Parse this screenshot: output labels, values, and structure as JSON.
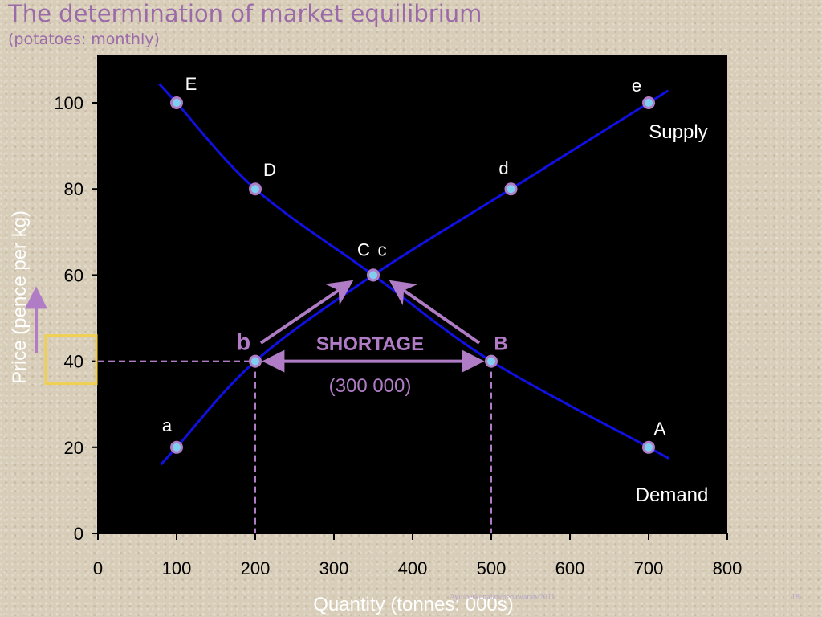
{
  "slide": {
    "title": "The determination of market equilibrium",
    "subtitle": "(potatoes: monthly)",
    "footer": "Ayu/perkenalan/penawaran/2011",
    "page_number": "18"
  },
  "colors": {
    "plot_background": "#000000",
    "curves": "#1010e0",
    "point_fill": "#7fd0f0",
    "point_ring": "#b07cc6",
    "highlight": "#b07cc6",
    "price_box": "#f0d050"
  },
  "chart_data": {
    "type": "line",
    "title": "The determination of market equilibrium",
    "xlabel": "Quantity (tonnes: 000s)",
    "ylabel": "Price (pence per kg)",
    "xlim": [
      0,
      800
    ],
    "ylim": [
      0,
      110
    ],
    "x_ticks": [
      "0",
      "100",
      "200",
      "300",
      "400",
      "500",
      "600",
      "700",
      "800"
    ],
    "y_ticks": [
      "0",
      "20",
      "40",
      "60",
      "80",
      "100"
    ],
    "grid": false,
    "series": [
      {
        "name": "Demand",
        "points": [
          {
            "label": "E",
            "x": 100,
            "y": 100
          },
          {
            "label": "D",
            "x": 200,
            "y": 80
          },
          {
            "label": "C",
            "x": 350,
            "y": 60
          },
          {
            "label": "B",
            "x": 500,
            "y": 40
          },
          {
            "label": "A",
            "x": 700,
            "y": 20
          }
        ]
      },
      {
        "name": "Supply",
        "points": [
          {
            "label": "a",
            "x": 100,
            "y": 20
          },
          {
            "label": "b",
            "x": 200,
            "y": 40
          },
          {
            "label": "c",
            "x": 350,
            "y": 60
          },
          {
            "label": "d",
            "x": 525,
            "y": 80
          },
          {
            "label": "e",
            "x": 700,
            "y": 100
          }
        ]
      }
    ],
    "annotations": {
      "shortage_label": "SHORTAGE",
      "shortage_amount": "(300 000)",
      "price_level": 40,
      "shortage_from_x": 200,
      "shortage_to_x": 500,
      "equilibrium": {
        "x": 350,
        "y": 60
      }
    }
  }
}
